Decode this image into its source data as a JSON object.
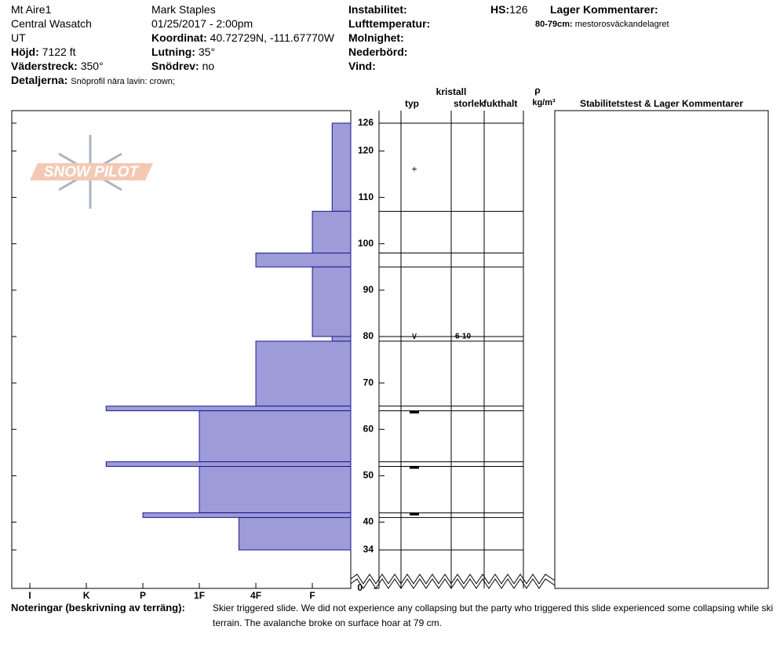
{
  "header": {
    "location": "Mt Aire1",
    "range": "Central Wasatch",
    "state": "UT",
    "elevation_label": "Höjd:",
    "elevation": "7122 ft",
    "aspect_label": "Väderstreck:",
    "aspect": "350°",
    "details_label": "Detaljerna:",
    "details": "Snöprofil nära lavin: crown;",
    "observer": "Mark Staples",
    "datetime": "01/25/2017 - 2:00pm",
    "coord_label": "Koordinat:",
    "coord": "40.72729N, -111.67770W",
    "slope_label": "Lutning:",
    "slope": "35°",
    "wind_loading_label": "Snödrev:",
    "wind_loading": "no",
    "instability_label": "Instabilitet:",
    "air_temp_label": "Lufttemperatur:",
    "sky_label": "Molnighet:",
    "precip_label": "Nederbörd:",
    "wind_label": "Vind:",
    "hs_label": "HS:",
    "hs": "126",
    "layer_comments_label": "Lager Kommentarer:",
    "layer_comment_depth": "80-79cm:",
    "layer_comment": "mestorosväckandelagret"
  },
  "logo": "SNOW PILOT",
  "columns": {
    "crystal": "kristall",
    "type": "typ",
    "size": "storlek",
    "moisture": "fukthalt",
    "rho": "ρ",
    "density_unit": "kg/m³",
    "comments": "Stabilitetstest & Lager Kommentarer"
  },
  "chart_data": {
    "type": "bar",
    "layers": {
      "top": [
        126,
        107,
        98,
        95,
        80,
        79,
        65,
        64,
        53,
        52,
        42,
        41
      ],
      "bottom": [
        107,
        98,
        95,
        80,
        79,
        65,
        64,
        53,
        52,
        42,
        41,
        34
      ],
      "hardness": [
        0.65,
        1,
        2,
        1,
        0.65,
        2,
        4.65,
        3,
        4.65,
        3,
        4,
        2.3
      ]
    },
    "color": "#9d9bd8",
    "xlim": [
      6.32,
      0.32
    ],
    "xticks": [
      {
        "value": 6,
        "label": "I"
      },
      {
        "value": 5,
        "label": "K"
      },
      {
        "value": 4,
        "label": "P"
      },
      {
        "value": 3,
        "label": "1F"
      },
      {
        "value": 2,
        "label": "4F"
      },
      {
        "value": 1,
        "label": "F"
      }
    ],
    "ylim": [
      34,
      128.7
    ],
    "yticks": [
      126,
      120,
      110,
      100,
      90,
      80,
      70,
      60,
      50,
      40,
      34
    ],
    "base_ytick": 0,
    "grains": [
      {
        "depth": 116,
        "type": "+"
      },
      {
        "depth": 80,
        "type": "∨",
        "size": "6-10"
      },
      {
        "depth": 64,
        "type": "▬"
      },
      {
        "depth": 52,
        "type": "▬"
      },
      {
        "depth": 42,
        "type": "▬"
      }
    ]
  },
  "notes": {
    "label": "Noteringar (beskrivning av terräng):",
    "lines": [
      "Skier triggered slide. We did not experience any collapsing but the party who triggered this slide experienced some collapsing while ski",
      "terrain. The avalanche broke on surface hoar at 79 cm."
    ]
  }
}
